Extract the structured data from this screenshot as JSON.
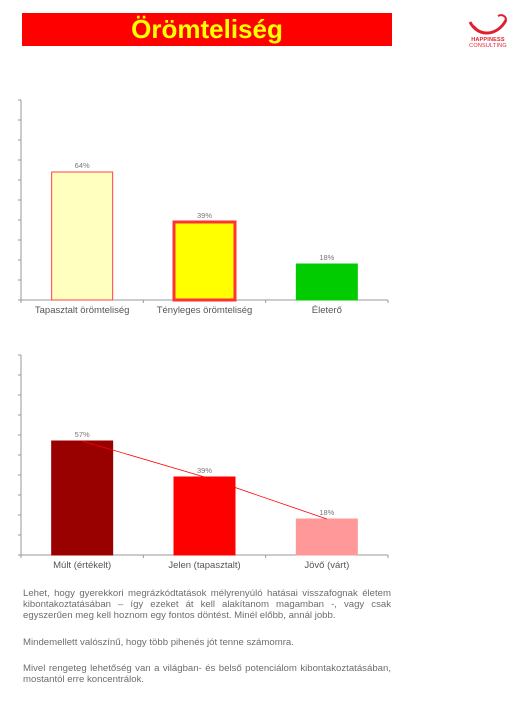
{
  "header": {
    "title": "Örömteliség",
    "logo_text": "HAPPINESS",
    "logo_sub": "CONSULTING"
  },
  "chart_data": [
    {
      "type": "bar",
      "categories": [
        "Tapasztalt örömteliség",
        "Tényleges örömteliség",
        "Életerő"
      ],
      "values": [
        64,
        39,
        18
      ],
      "labels": [
        "64%",
        "39%",
        "18%"
      ],
      "ylim": [
        0,
        100
      ],
      "colors": [
        "#ffffc0",
        "#ffff00",
        "#00cc00"
      ],
      "borders": [
        "#ff4040",
        "#ff3333",
        "#00cc00"
      ]
    },
    {
      "type": "bar",
      "categories": [
        "Múlt (értékelt)",
        "Jelen (tapasztalt)",
        "Jövő (várt)"
      ],
      "values": [
        57,
        39,
        18
      ],
      "labels": [
        "57%",
        "39%",
        "18%"
      ],
      "ylim": [
        0,
        100
      ],
      "colors": [
        "#990000",
        "#ff0000",
        "#ff9999"
      ],
      "trendline_color": "#ff0000"
    }
  ],
  "paragraphs": [
    "Lehet, hogy gyerekkori megrázkódtatások mélyrenyúló hatásai visszafognak életem kibontakoztatásában – így ezeket át kell alakítanom magamban -, vagy csak egyszerűen meg kell hoznom egy fontos döntést. Minél előbb, annál jobb.",
    "Mindemellett valószínű, hogy több pihenés jót tenne számomra.",
    "Mivel rengeteg lehetőség van a világban- és belső potenciálom kibontakoztatásában, mostantól erre koncentrálok."
  ]
}
